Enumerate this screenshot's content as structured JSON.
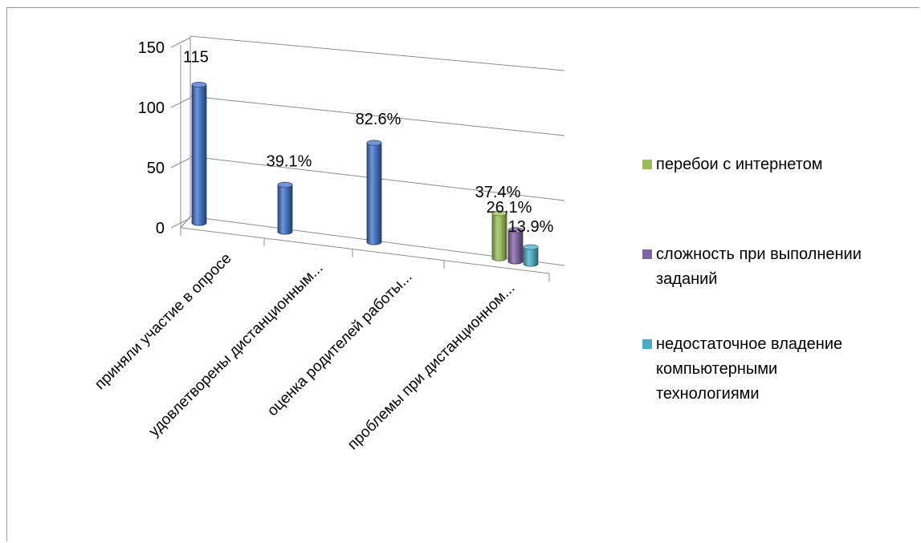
{
  "chart_data": {
    "type": "bar",
    "subtype": "3d-cylinder",
    "title": "",
    "ylim": [
      0,
      150
    ],
    "y_ticks": [
      "0",
      "50",
      "100",
      "150"
    ],
    "categories": [
      "приняли участие в опросе",
      "удовлетворены дистанционным...",
      "оценка родителей работы...",
      "проблемы при дистанционном..."
    ],
    "main_series": {
      "color": "#4472C4",
      "values": [
        115,
        39.1,
        82.6
      ],
      "labels": [
        "115",
        "39.1%",
        "82.6%"
      ]
    },
    "problem_series": [
      {
        "name": "перебои с интернетом",
        "value": 37.4,
        "label": "37.4%",
        "color": "#9BBB59"
      },
      {
        "name": "сложность при выполнении заданий",
        "value": 26.1,
        "label": "26,1%",
        "color": "#8064A2"
      },
      {
        "name": "недостаточное владение компьютерными технологиями",
        "value": 13.9,
        "label": "13.9%",
        "color": "#4BACC6"
      }
    ],
    "legend": {
      "position": "right",
      "entries": [
        {
          "lines": [
            "перебои с интернетом"
          ],
          "color": "#9BBB59"
        },
        {
          "lines": [
            "сложность при выполнении",
            "заданий"
          ],
          "color": "#8064A2"
        },
        {
          "lines": [
            "недостаточное владение",
            "компьютерными",
            "технологиями"
          ],
          "color": "#4BACC6"
        }
      ]
    },
    "grid": true
  }
}
